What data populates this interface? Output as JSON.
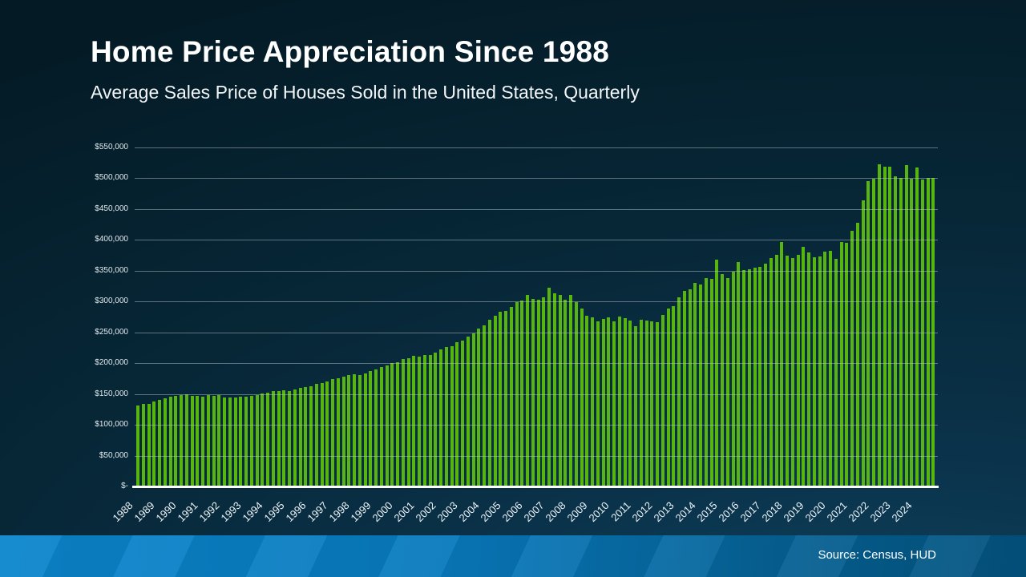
{
  "slide": {
    "title": "Home Price Appreciation Since 1988",
    "subtitle": "Average Sales Price of Houses Sold in the United States, Quarterly",
    "source": "Source: Census, HUD"
  },
  "chart_data": {
    "type": "bar",
    "title": "Home Price Appreciation Since 1988",
    "subtitle": "Average Sales Price of Houses Sold in the United States, Quarterly",
    "frequency": "quarterly",
    "unit": "USD",
    "bar_color": "#58b50f",
    "grid": true,
    "ylim": [
      0,
      550000
    ],
    "y_tick_step": 50000,
    "y_tick_labels": [
      "$550,000",
      "$500,000",
      "$450,000",
      "$400,000",
      "$350,000",
      "$300,000",
      "$250,000",
      "$200,000",
      "$150,000",
      "$100,000",
      "$50,000",
      "$-"
    ],
    "years": [
      1988,
      1989,
      1990,
      1991,
      1992,
      1993,
      1994,
      1995,
      1996,
      1997,
      1998,
      1999,
      2000,
      2001,
      2002,
      2003,
      2004,
      2005,
      2006,
      2007,
      2008,
      2009,
      2010,
      2011,
      2012,
      2013,
      2014,
      2015,
      2016,
      2017,
      2018,
      2019,
      2020,
      2021,
      2022,
      2023,
      2024
    ],
    "quarters_per_year": 4,
    "x_start": "1988 Q1",
    "x_end": "2024 Q4",
    "values": [
      131400,
      133500,
      134200,
      137800,
      141100,
      143300,
      145500,
      147400,
      148600,
      149200,
      146800,
      147500,
      146300,
      147900,
      147100,
      148300,
      143900,
      144800,
      144500,
      146300,
      145300,
      146900,
      148500,
      150800,
      152400,
      154400,
      155100,
      156200,
      155100,
      157600,
      159400,
      161500,
      163100,
      166300,
      167200,
      170300,
      173900,
      175600,
      177600,
      180200,
      182100,
      181300,
      183200,
      187200,
      189600,
      194400,
      196900,
      200400,
      201100,
      206500,
      208400,
      212400,
      210600,
      213500,
      213800,
      216900,
      222300,
      226700,
      227600,
      234200,
      236100,
      243600,
      248900,
      256100,
      262000,
      270900,
      276400,
      283100,
      284300,
      291700,
      298500,
      302200,
      310900,
      304800,
      303100,
      306600,
      322100,
      313300,
      310700,
      302500,
      310200,
      298800,
      288200,
      276700,
      274200,
      267600,
      271500,
      274100,
      268300,
      276200,
      273500,
      268900,
      260300,
      270600,
      268800,
      267300,
      266400,
      278500,
      289200,
      292700,
      306300,
      317300,
      320300,
      330000,
      328200,
      337900,
      336600,
      367800,
      345200,
      338100,
      348300,
      364700,
      351700,
      352600,
      355200,
      356900,
      361300,
      371200,
      375600,
      397200,
      374000,
      371200,
      375600,
      388600,
      379900,
      372500,
      373800,
      381200,
      382700,
      368800,
      396800,
      394700,
      414800,
      427200,
      464700,
      494900,
      499100,
      523200,
      519200,
      518800,
      503900,
      500900,
      520900,
      498900,
      517600,
      498100,
      501000,
      500200
    ]
  }
}
